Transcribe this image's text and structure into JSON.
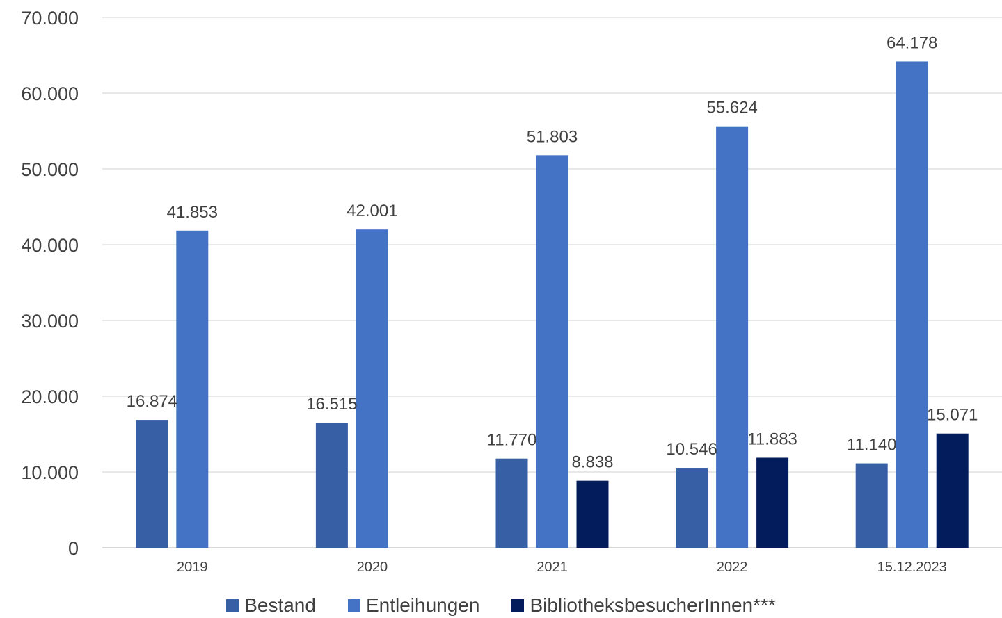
{
  "chart_data": {
    "type": "bar",
    "categories": [
      "2019",
      "2020",
      "2021",
      "2022",
      "15.12.2023"
    ],
    "series": [
      {
        "name": "Bestand",
        "color": "#365fa6",
        "values": [
          16874,
          16515,
          11770,
          10546,
          11140
        ],
        "labels": [
          "16.874",
          "16.515",
          "11.770",
          "10.546",
          "11.140"
        ]
      },
      {
        "name": "Entleihungen",
        "color": "#4472c4",
        "values": [
          41853,
          42001,
          51803,
          55624,
          64178
        ],
        "labels": [
          "41.853",
          "42.001",
          "51.803",
          "55.624",
          "64.178"
        ]
      },
      {
        "name": "BibliotheksbesucherInnen***",
        "color": "#031d5c",
        "values": [
          null,
          null,
          8838,
          11883,
          15071
        ],
        "labels": [
          "",
          "",
          "8.838",
          "11.883",
          "15.071"
        ]
      }
    ],
    "ylim": [
      0,
      70000
    ],
    "yticks": [
      0,
      10000,
      20000,
      30000,
      40000,
      50000,
      60000,
      70000
    ],
    "ytick_labels": [
      "0",
      "10.000",
      "20.000",
      "30.000",
      "40.000",
      "50.000",
      "60.000",
      "70.000"
    ],
    "grid": true,
    "legend_position": "bottom"
  }
}
